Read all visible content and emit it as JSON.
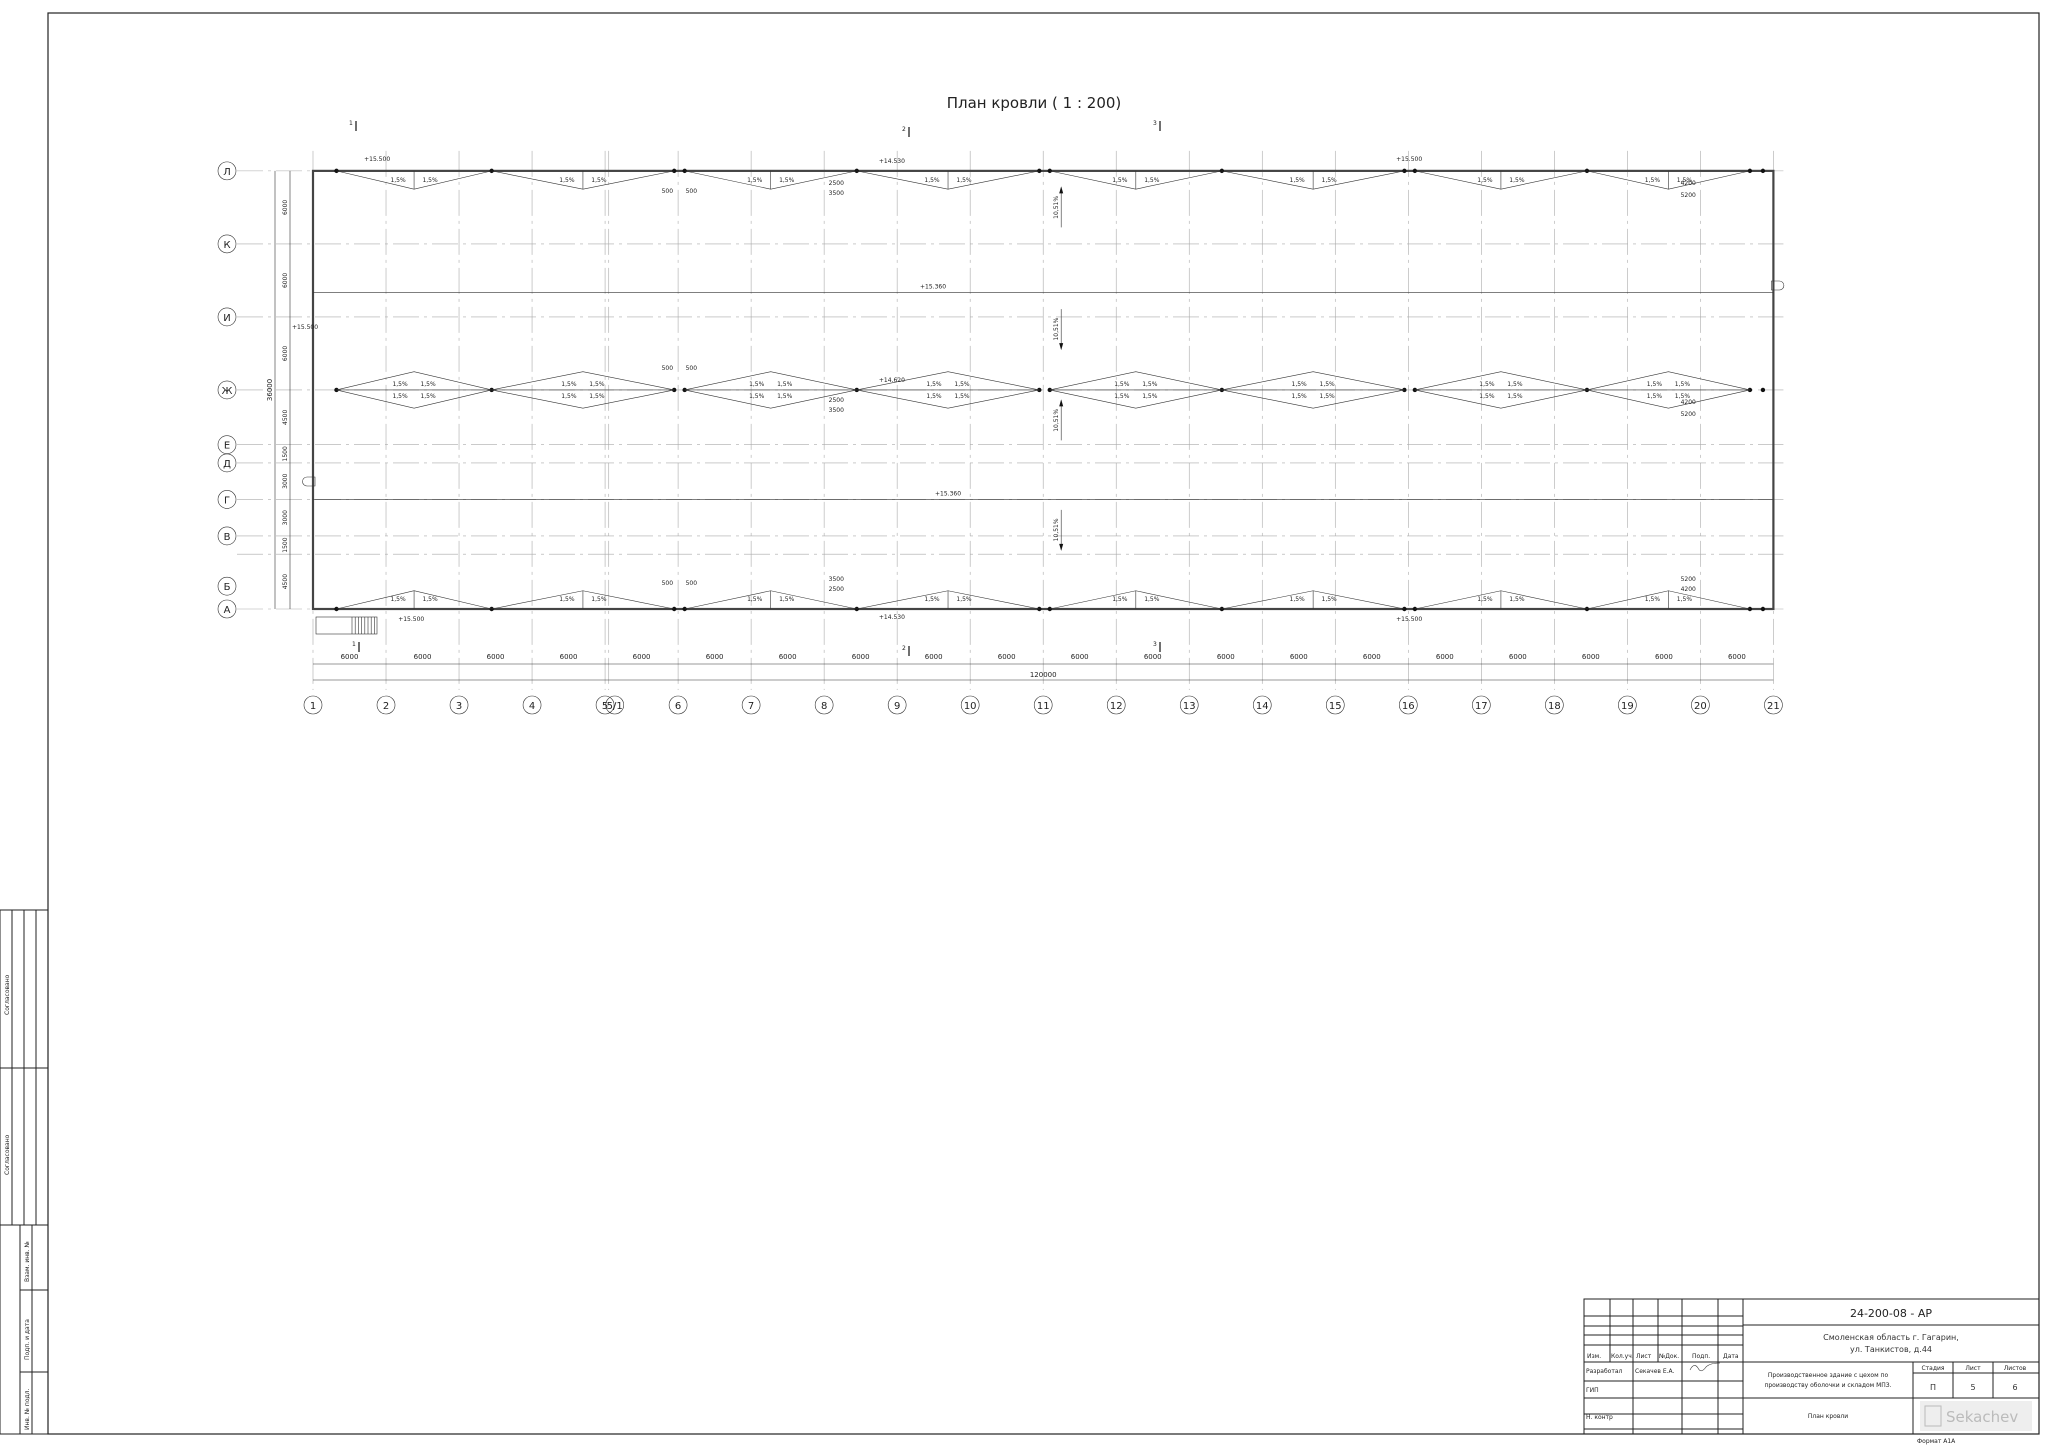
{
  "drawing": {
    "title": "План кровли ( 1 : 200)",
    "column_axes": [
      "1",
      "2",
      "3",
      "4",
      "5",
      "5/1",
      "6",
      "7",
      "8",
      "9",
      "10",
      "11",
      "12",
      "13",
      "14",
      "15",
      "16",
      "17",
      "18",
      "19",
      "20",
      "21"
    ],
    "row_axes": [
      "А",
      "Б",
      "В",
      "Г",
      "Д",
      "Е",
      "Ж",
      "И",
      "К",
      "Л"
    ],
    "row_spacings_mm": [
      "4500",
      "1500",
      "3000",
      "3000",
      "1500",
      "4500",
      "6000",
      "6000",
      "6000"
    ],
    "column_spacing_mm": "6000",
    "total_length_mm": "120000",
    "total_width_mm": "36000",
    "slope_label": "1,5%",
    "main_slope_label": "10,51%",
    "elevations": {
      "parapet": "+15.500",
      "ridge": "+15.360",
      "drain": "+14.530",
      "drain_mid": "+14.620"
    },
    "drain_dims": {
      "d500": "500",
      "d2500": "2500",
      "d3500": "3500",
      "d4200": "4200",
      "d5200": "5200"
    },
    "section_marks": [
      "1",
      "2",
      "3"
    ]
  },
  "title_block": {
    "code": "24-200-08 - АР",
    "address_line1": "Смоленская область г. Гагарин,",
    "address_line2": "ул. Танкистов, д.44",
    "headers": [
      "Изм.",
      "Кол.уч.",
      "Лист",
      "№Док.",
      "Подп.",
      "Дата"
    ],
    "roles": [
      "Разработал",
      "ГИП",
      "Н. контр"
    ],
    "developer_name": "Секачев Е.А.",
    "project_line1": "Производственное здание с цехом по",
    "project_line2": "производству оболочки и складом МПЗ.",
    "stage_label": "Стадия",
    "sheet_label": "Лист",
    "sheets_label": "Листов",
    "stage": "П",
    "sheet": "5",
    "sheets": "6",
    "sheet_title": "План кровли",
    "logo_text": "Sekachev",
    "format": "Формат А1А"
  },
  "side_stamp": {
    "agreed1": "Согласовано",
    "agreed2": "Согласовано",
    "replace_inv": "Взам. инв. №",
    "sign_date": "Подп. и дата",
    "inv_orig": "Инв. № подл."
  }
}
